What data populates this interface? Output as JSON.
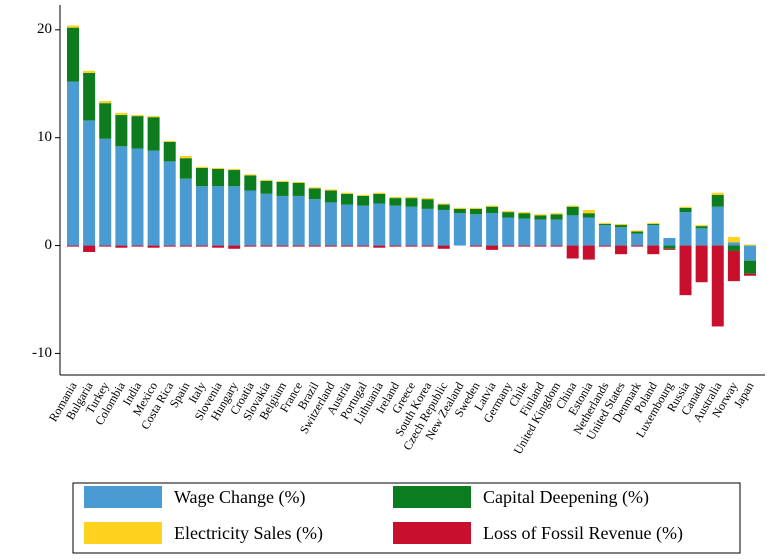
{
  "chart_data": {
    "type": "stacked_bar",
    "categories": [
      "Romania",
      "Bulgaria",
      "Turkey",
      "Colombia",
      "India",
      "Mexico",
      "Costa Rica",
      "Spain",
      "Italy",
      "Slovenia",
      "Hungary",
      "Croatia",
      "Slovakia",
      "Belgium",
      "France",
      "Brazil",
      "Switzerland",
      "Austria",
      "Portugal",
      "Lithuania",
      "Ireland",
      "Greece",
      "South Korea",
      "Czech Republic",
      "New Zealand",
      "Sweden",
      "Latvia",
      "Germany",
      "Chile",
      "Finland",
      "United Kingdom",
      "China",
      "Estonia",
      "Netherlands",
      "United States",
      "Denmark",
      "Poland",
      "Luxembourg",
      "Russia",
      "Canada",
      "Australia",
      "Norway",
      "Japan"
    ],
    "series": [
      {
        "name": "Wage Change (%)",
        "color": "#4a9bd1",
        "values": [
          15.2,
          11.6,
          9.9,
          9.2,
          9.0,
          8.8,
          7.8,
          6.2,
          5.5,
          5.5,
          5.5,
          5.1,
          4.8,
          4.6,
          4.6,
          4.3,
          4.0,
          3.8,
          3.7,
          3.9,
          3.7,
          3.6,
          3.4,
          3.3,
          3.0,
          2.9,
          3.0,
          2.6,
          2.5,
          2.4,
          2.4,
          2.8,
          2.6,
          1.9,
          1.7,
          1.1,
          1.9,
          0.7,
          3.1,
          1.6,
          3.6,
          0.3,
          -1.4
        ]
      },
      {
        "name": "Capital Deepening (%)",
        "color": "#0b7d1f",
        "values": [
          5.0,
          4.4,
          3.3,
          2.9,
          3.0,
          3.1,
          1.8,
          1.9,
          1.7,
          1.6,
          1.5,
          1.4,
          1.2,
          1.3,
          1.2,
          1.0,
          1.1,
          1.0,
          0.9,
          0.9,
          0.7,
          0.8,
          0.9,
          0.5,
          0.4,
          0.5,
          0.6,
          0.5,
          0.5,
          0.4,
          0.5,
          0.8,
          0.4,
          0.1,
          0.2,
          0.2,
          0.1,
          -0.3,
          0.4,
          0.2,
          1.1,
          -0.5,
          -1.2
        ]
      },
      {
        "name": "Electricity Sales (%)",
        "color": "#ffd21f",
        "values": [
          0.2,
          0.2,
          0.2,
          0.2,
          0.1,
          0.1,
          0.1,
          0.2,
          0.1,
          0.1,
          0.1,
          0.1,
          0.1,
          0.1,
          0.1,
          0.1,
          0.1,
          0.1,
          0.1,
          0.1,
          0.1,
          0.1,
          0.1,
          0.1,
          0.1,
          0.1,
          0.1,
          0.1,
          0.1,
          0.1,
          0.1,
          0.1,
          0.3,
          0.1,
          0.1,
          0.1,
          0.1,
          0.0,
          0.1,
          0.1,
          0.2,
          0.5,
          0.1
        ]
      },
      {
        "name": "Loss of Fossil Revenue (%)",
        "color": "#c8102e",
        "values": [
          -0.1,
          -0.6,
          -0.1,
          -0.2,
          -0.1,
          -0.2,
          -0.1,
          -0.1,
          -0.1,
          -0.2,
          -0.3,
          -0.1,
          -0.1,
          -0.1,
          -0.1,
          -0.1,
          -0.1,
          -0.1,
          -0.1,
          -0.2,
          -0.1,
          -0.1,
          -0.1,
          -0.3,
          0.0,
          -0.1,
          -0.4,
          -0.1,
          -0.1,
          -0.1,
          -0.1,
          -1.2,
          -1.3,
          -0.1,
          -0.8,
          -0.1,
          -0.8,
          -0.1,
          -4.6,
          -3.4,
          -7.5,
          -2.8,
          -0.2
        ]
      }
    ],
    "ylim": [
      -12,
      22.3
    ],
    "yticks": [
      -10,
      0,
      10,
      20
    ]
  }
}
